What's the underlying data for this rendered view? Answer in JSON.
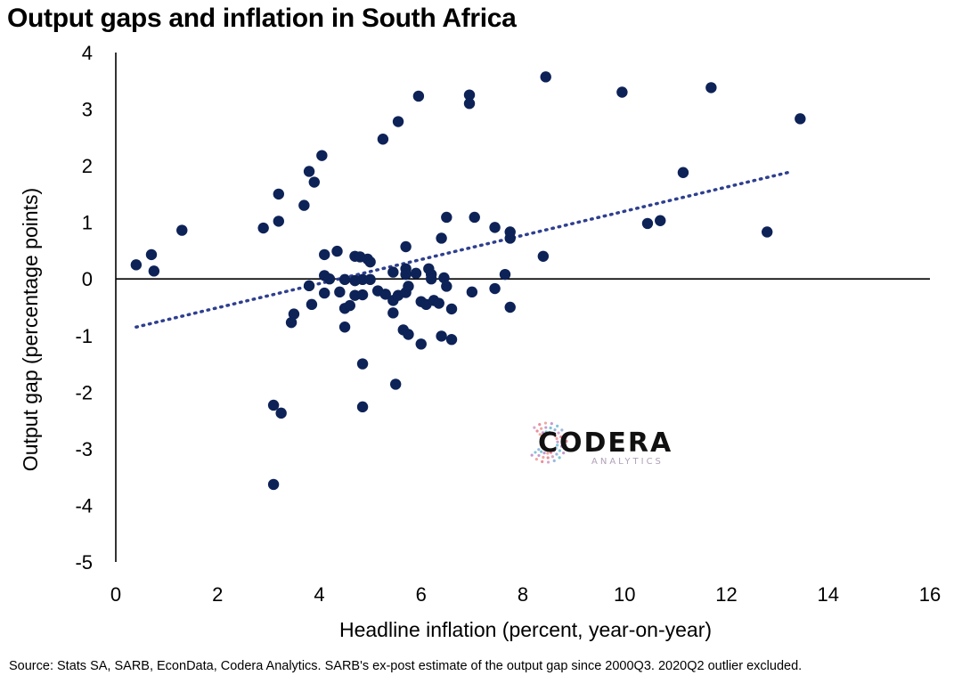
{
  "chart_data": {
    "type": "scatter",
    "title": "Output gaps and inflation in South Africa",
    "xlabel": "Headline inflation (percent, year-on-year)",
    "ylabel": "Output gap (percentage points)",
    "xlim": [
      0,
      16
    ],
    "ylim": [
      -5,
      4
    ],
    "xticks": [
      "0",
      "2",
      "4",
      "6",
      "8",
      "10",
      "12",
      "14",
      "16"
    ],
    "yticks": [
      "4",
      "3",
      "2",
      "1",
      "0",
      "-1",
      "-2",
      "-3",
      "-4",
      "-5"
    ],
    "grid": false,
    "trendline": {
      "style": "dotted",
      "x": [
        0.4,
        13.3
      ],
      "y": [
        -0.85,
        1.9
      ]
    },
    "colors": {
      "points": "#0d2257",
      "trendline": "#2e3f8f",
      "axis": "#000000"
    },
    "points": [
      [
        0.4,
        0.25
      ],
      [
        0.7,
        0.43
      ],
      [
        0.75,
        0.14
      ],
      [
        1.3,
        0.86
      ],
      [
        2.9,
        0.9
      ],
      [
        3.2,
        1.02
      ],
      [
        3.2,
        1.5
      ],
      [
        3.7,
        1.3
      ],
      [
        3.8,
        1.9
      ],
      [
        3.9,
        1.71
      ],
      [
        4.05,
        2.18
      ],
      [
        5.25,
        2.47
      ],
      [
        5.55,
        2.78
      ],
      [
        5.95,
        3.23
      ],
      [
        6.95,
        3.25
      ],
      [
        6.95,
        3.1
      ],
      [
        8.45,
        3.57
      ],
      [
        9.95,
        3.3
      ],
      [
        11.7,
        3.38
      ],
      [
        13.45,
        2.83
      ],
      [
        11.15,
        1.88
      ],
      [
        10.45,
        0.98
      ],
      [
        10.7,
        1.03
      ],
      [
        12.8,
        0.83
      ],
      [
        8.4,
        0.4
      ],
      [
        6.5,
        1.09
      ],
      [
        7.05,
        1.09
      ],
      [
        7.45,
        0.91
      ],
      [
        7.75,
        0.83
      ],
      [
        7.75,
        0.72
      ],
      [
        6.4,
        0.72
      ],
      [
        5.7,
        0.57
      ],
      [
        4.35,
        0.49
      ],
      [
        4.1,
        0.43
      ],
      [
        4.7,
        0.4
      ],
      [
        4.8,
        0.39
      ],
      [
        4.95,
        0.35
      ],
      [
        5.0,
        0.3
      ],
      [
        5.7,
        0.18
      ],
      [
        6.15,
        0.18
      ],
      [
        5.45,
        0.12
      ],
      [
        5.7,
        0.08
      ],
      [
        5.9,
        0.1
      ],
      [
        6.2,
        0.08
      ],
      [
        7.65,
        0.08
      ],
      [
        4.1,
        0.06
      ],
      [
        4.2,
        0.0
      ],
      [
        4.5,
        -0.01
      ],
      [
        4.7,
        -0.03
      ],
      [
        4.85,
        -0.01
      ],
      [
        5.0,
        -0.01
      ],
      [
        6.2,
        0.0
      ],
      [
        6.45,
        0.02
      ],
      [
        3.8,
        -0.12
      ],
      [
        4.1,
        -0.25
      ],
      [
        4.4,
        -0.23
      ],
      [
        4.7,
        -0.29
      ],
      [
        4.85,
        -0.28
      ],
      [
        5.15,
        -0.21
      ],
      [
        5.3,
        -0.27
      ],
      [
        5.45,
        -0.38
      ],
      [
        5.55,
        -0.29
      ],
      [
        5.7,
        -0.24
      ],
      [
        5.75,
        -0.13
      ],
      [
        6.5,
        -0.13
      ],
      [
        7.0,
        -0.23
      ],
      [
        7.45,
        -0.17
      ],
      [
        6.0,
        -0.4
      ],
      [
        6.1,
        -0.45
      ],
      [
        6.25,
        -0.38
      ],
      [
        6.35,
        -0.43
      ],
      [
        3.85,
        -0.45
      ],
      [
        4.5,
        -0.52
      ],
      [
        4.6,
        -0.47
      ],
      [
        5.45,
        -0.6
      ],
      [
        6.6,
        -0.53
      ],
      [
        7.75,
        -0.5
      ],
      [
        3.5,
        -0.62
      ],
      [
        3.45,
        -0.77
      ],
      [
        4.5,
        -0.85
      ],
      [
        5.65,
        -0.9
      ],
      [
        5.75,
        -0.98
      ],
      [
        6.4,
        -1.01
      ],
      [
        6.6,
        -1.07
      ],
      [
        6.0,
        -1.15
      ],
      [
        4.85,
        -1.5
      ],
      [
        5.5,
        -1.86
      ],
      [
        3.1,
        -2.23
      ],
      [
        4.85,
        -2.26
      ],
      [
        3.25,
        -2.37
      ],
      [
        3.1,
        -3.63
      ]
    ]
  },
  "source": "Source: Stats SA, SARB, EconData, Codera Analytics. SARB's ex-post estimate of the output gap since 2000Q3. 2020Q2 outlier excluded.",
  "logo": {
    "word": "CODERA",
    "sub": "ANALYTICS"
  }
}
